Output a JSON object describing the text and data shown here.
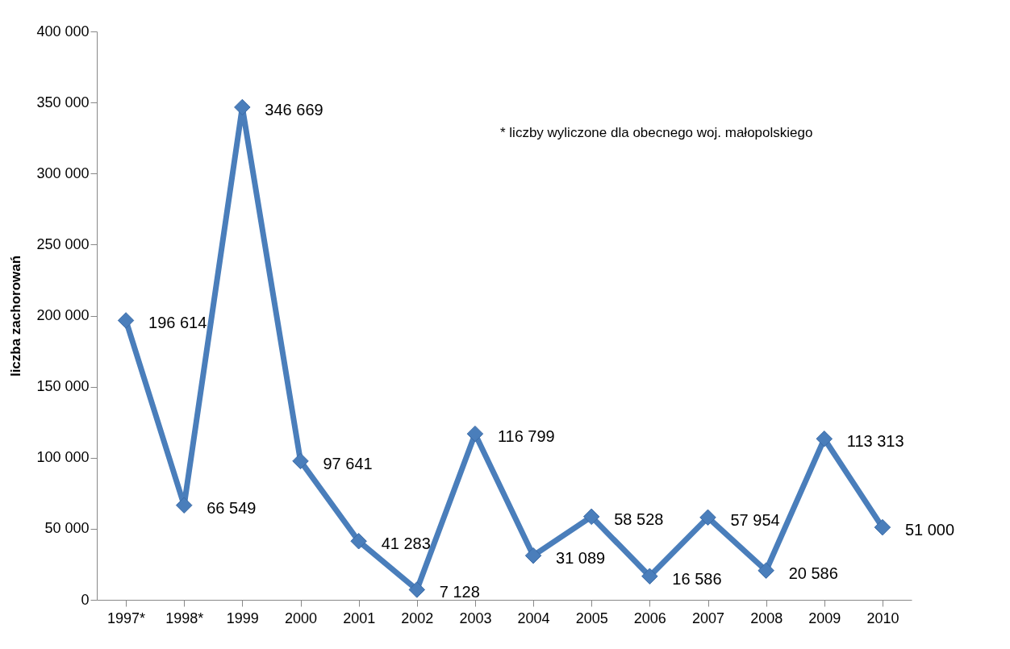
{
  "chart_data": {
    "type": "line",
    "ylabel": "liczba zachorowań",
    "categories": [
      "1997*",
      "1998*",
      "1999",
      "2000",
      "2001",
      "2002",
      "2003",
      "2004",
      "2005",
      "2006",
      "2007",
      "2008",
      "2009",
      "2010"
    ],
    "series": [
      {
        "color": "#4a7ebb",
        "values": [
          196614,
          66549,
          346669,
          97641,
          41283,
          7128,
          116799,
          31089,
          58528,
          16586,
          57954,
          20586,
          113313,
          51000
        ],
        "value_labels": [
          "196 614",
          "66 549",
          "346 669",
          "97 641",
          "41 283",
          "7 128",
          "116 799",
          "31 089",
          "58 528",
          "16 586",
          "57 954",
          "20 586",
          "113 313",
          "51 000"
        ]
      }
    ],
    "ylim": [
      0,
      400000
    ],
    "yticks": [
      {
        "value": 0,
        "label": "0"
      },
      {
        "value": 50000,
        "label": "50 000"
      },
      {
        "value": 100000,
        "label": "100 000"
      },
      {
        "value": 150000,
        "label": "150 000"
      },
      {
        "value": 200000,
        "label": "200 000"
      },
      {
        "value": 250000,
        "label": "250 000"
      },
      {
        "value": 300000,
        "label": "300 000"
      },
      {
        "value": 350000,
        "label": "350 000"
      },
      {
        "value": 400000,
        "label": "400 000"
      }
    ],
    "annotations": [
      "* liczby wyliczone dla obecnego  woj. małopolskiego"
    ],
    "marker": "diamond",
    "line_style": "solid",
    "grid": false
  }
}
